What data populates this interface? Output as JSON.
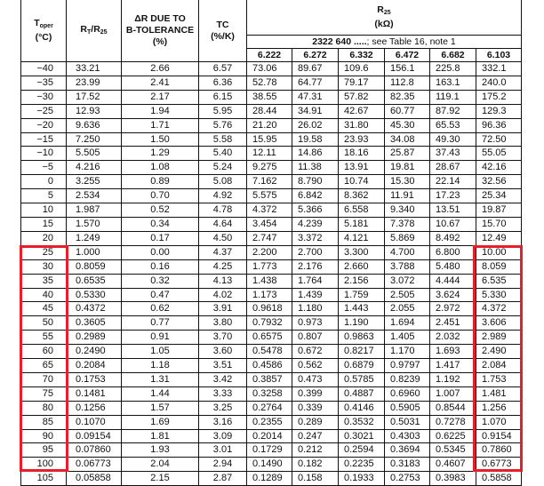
{
  "header": {
    "toper_main": "T",
    "toper_sub": "oper",
    "toper_unit": "(°C)",
    "ratio_rt": "R",
    "ratio_rt_sub": "T",
    "ratio_sep": "/R",
    "ratio_r25_sub": "25",
    "delta_line1": "ΔR DUE TO",
    "delta_line2": "B-TOLERANCE",
    "delta_line3": "(%)",
    "tc_line1": "TC",
    "tc_line2": "(%/K)",
    "r25_main": "R",
    "r25_sub": "25",
    "r25_unit": "(kΩ)",
    "type_prefix": "2322 640 .....",
    "type_note": "; see Table 16, note 1",
    "columns": [
      "6.222",
      "6.272",
      "6.332",
      "6.472",
      "6.682",
      "6.103"
    ]
  },
  "rows": [
    [
      "−40",
      "33.21",
      "2.66",
      "6.57",
      "73.06",
      "89.67",
      "109.6",
      "156.1",
      "225.8",
      "332.1"
    ],
    [
      "−35",
      "23.99",
      "2.41",
      "6.36",
      "52.78",
      "64.77",
      "79.17",
      "112.8",
      "163.1",
      "240.0"
    ],
    [
      "−30",
      "17.52",
      "2.17",
      "6.15",
      "38.55",
      "47.31",
      "57.82",
      "82.35",
      "119.1",
      "175.2"
    ],
    [
      "−25",
      "12.93",
      "1.94",
      "5.95",
      "28.44",
      "34.91",
      "42.67",
      "60.77",
      "87.92",
      "129.3"
    ],
    [
      "−20",
      "9.636",
      "1.71",
      "5.76",
      "21.20",
      "26.02",
      "31.80",
      "45.30",
      "65.53",
      "96.36"
    ],
    [
      "−15",
      "7.250",
      "1.50",
      "5.58",
      "15.95",
      "19.58",
      "23.93",
      "34.08",
      "49.30",
      "72.50"
    ],
    [
      "−10",
      "5.505",
      "1.29",
      "5.40",
      "12.11",
      "14.86",
      "18.16",
      "25.87",
      "37.43",
      "55.05"
    ],
    [
      "−5",
      "4.216",
      "1.08",
      "5.24",
      "9.275",
      "11.38",
      "13.91",
      "19.81",
      "28.67",
      "42.16"
    ],
    [
      "0",
      "3.255",
      "0.89",
      "5.08",
      "7.162",
      "8.790",
      "10.74",
      "15.30",
      "22.14",
      "32.56"
    ],
    [
      "5",
      "2.534",
      "0.70",
      "4.92",
      "5.575",
      "6.842",
      "8.362",
      "11.91",
      "17.23",
      "25.34"
    ],
    [
      "10",
      "1.987",
      "0.52",
      "4.78",
      "4.372",
      "5.366",
      "6.558",
      "9.340",
      "13.51",
      "19.87"
    ],
    [
      "15",
      "1.570",
      "0.34",
      "4.64",
      "3.454",
      "4.239",
      "5.181",
      "7.378",
      "10.67",
      "15.70"
    ],
    [
      "20",
      "1.249",
      "0.17",
      "4.50",
      "2.747",
      "3.372",
      "4.121",
      "5.869",
      "8.492",
      "12.49"
    ],
    [
      "25",
      "1.000",
      "0.00",
      "4.37",
      "2.200",
      "2.700",
      "3.300",
      "4.700",
      "6.800",
      "10.00"
    ],
    [
      "30",
      "0.8059",
      "0.16",
      "4.25",
      "1.773",
      "2.176",
      "2.660",
      "3.788",
      "5.480",
      "8.059"
    ],
    [
      "35",
      "0.6535",
      "0.32",
      "4.13",
      "1.438",
      "1.764",
      "2.156",
      "3.072",
      "4.444",
      "6.535"
    ],
    [
      "40",
      "0.5330",
      "0.47",
      "4.02",
      "1.173",
      "1.439",
      "1.759",
      "2.505",
      "3.624",
      "5.330"
    ],
    [
      "45",
      "0.4372",
      "0.62",
      "3.91",
      "0.9618",
      "1.180",
      "1.443",
      "2.055",
      "2.972",
      "4.372"
    ],
    [
      "50",
      "0.3605",
      "0.77",
      "3.80",
      "0.7932",
      "0.973",
      "1.190",
      "1.694",
      "2.451",
      "3.606"
    ],
    [
      "55",
      "0.2989",
      "0.91",
      "3.70",
      "0.6575",
      "0.807",
      "0.9863",
      "1.405",
      "2.032",
      "2.989"
    ],
    [
      "60",
      "0.2490",
      "1.05",
      "3.60",
      "0.5478",
      "0.672",
      "0.8217",
      "1.170",
      "1.693",
      "2.490"
    ],
    [
      "65",
      "0.2084",
      "1.18",
      "3.51",
      "0.4586",
      "0.562",
      "0.6879",
      "0.9797",
      "1.417",
      "2.084"
    ],
    [
      "70",
      "0.1753",
      "1.31",
      "3.42",
      "0.3857",
      "0.473",
      "0.5785",
      "0.8239",
      "1.192",
      "1.753"
    ],
    [
      "75",
      "0.1481",
      "1.44",
      "3.33",
      "0.3258",
      "0.399",
      "0.4887",
      "0.6960",
      "1.007",
      "1.481"
    ],
    [
      "80",
      "0.1256",
      "1.57",
      "3.25",
      "0.2764",
      "0.339",
      "0.4146",
      "0.5905",
      "0.8544",
      "1.256"
    ],
    [
      "85",
      "0.1070",
      "1.69",
      "3.16",
      "0.2355",
      "0.289",
      "0.3532",
      "0.5031",
      "0.7278",
      "1.070"
    ],
    [
      "90",
      "0.09154",
      "1.81",
      "3.09",
      "0.2014",
      "0.247",
      "0.3021",
      "0.4303",
      "0.6225",
      "0.9154"
    ],
    [
      "95",
      "0.07860",
      "1.93",
      "3.01",
      "0.1729",
      "0.212",
      "0.2594",
      "0.3694",
      "0.5345",
      "0.7860"
    ],
    [
      "100",
      "0.06773",
      "2.04",
      "2.94",
      "0.1490",
      "0.182",
      "0.2235",
      "0.3183",
      "0.4607",
      "0.6773"
    ],
    [
      "105",
      "0.05858",
      "2.15",
      "2.87",
      "0.1289",
      "0.158",
      "0.1933",
      "0.2753",
      "0.3983",
      "0.5858"
    ]
  ],
  "highlight_color": "#e5202b"
}
